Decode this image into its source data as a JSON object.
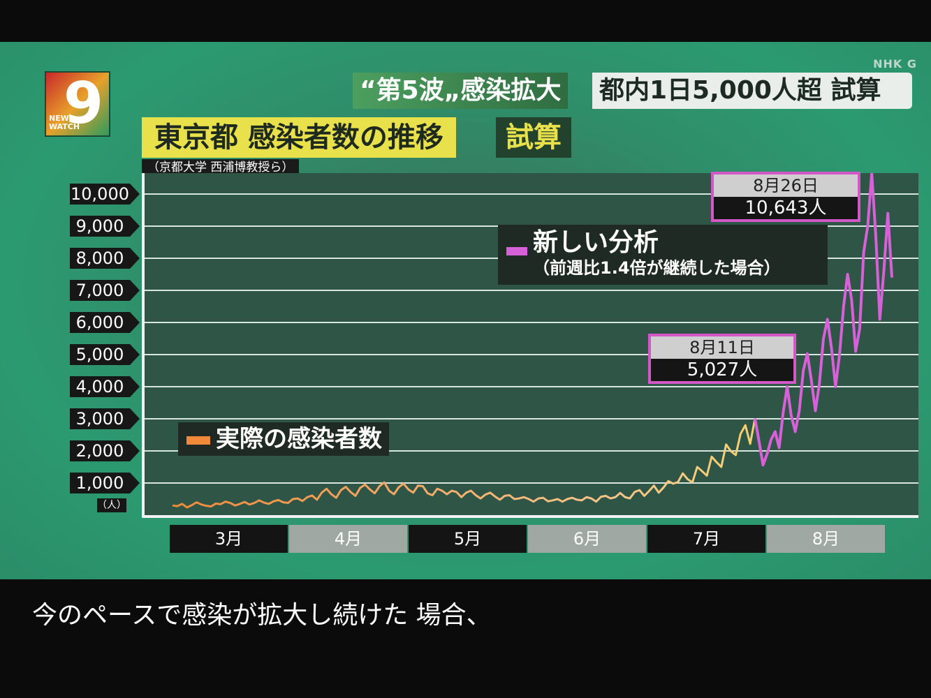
{
  "channel": "NHK G",
  "logo": {
    "number": "9",
    "text_line1": "NEWS",
    "text_line2": "WATCH"
  },
  "headline": {
    "left": "“第5波„感染拡大",
    "right": "都内1日5,000人超 試算"
  },
  "title": "東京都  感染者数の推移",
  "estimate_tag": "試算",
  "source": "（京都大学  西浦博教授ら）",
  "legend": {
    "actual": "実際の感染者数",
    "new_analysis_line1": "新しい分析",
    "new_analysis_line2": "（前週比1.4倍が継続した場合）"
  },
  "callouts": [
    {
      "date": "8月11日",
      "value": "5,027人"
    },
    {
      "date": "8月26日",
      "value": "10,643人"
    }
  ],
  "subtitle": "今のペースで感染が拡大し続けた 場合、",
  "colors": {
    "actual": "#f08a3a",
    "projection": "#d860d8",
    "plot_bg": "#2e5545"
  },
  "chart_data": {
    "type": "line",
    "yticks": [
      "10,000",
      "9,000",
      "8,000",
      "7,000",
      "6,000",
      "5,000",
      "4,000",
      "3,000",
      "2,000",
      "1,000"
    ],
    "yunit": "（人）",
    "months": [
      "3月",
      "4月",
      "5月",
      "6月",
      "7月",
      "8月"
    ],
    "ylim": [
      0,
      10643
    ],
    "grid": true,
    "series": [
      {
        "name": "実際の感染者数",
        "values": [
          300,
          280,
          350,
          240,
          310,
          400,
          330,
          290,
          270,
          360,
          340,
          420,
          380,
          300,
          350,
          410,
          330,
          380,
          460,
          390,
          350,
          430,
          470,
          400,
          380,
          500,
          520,
          440,
          560,
          610,
          480,
          700,
          820,
          650,
          540,
          780,
          880,
          720,
          600,
          850,
          950,
          800,
          680,
          900,
          1020,
          760,
          650,
          870,
          980,
          800,
          700,
          920,
          900,
          680,
          620,
          820,
          760,
          650,
          760,
          720,
          560,
          700,
          760,
          620,
          520,
          640,
          700,
          580,
          480,
          600,
          620,
          500,
          520,
          560,
          500,
          420,
          520,
          540,
          430,
          460,
          500,
          420,
          500,
          540,
          480,
          460,
          560,
          520,
          420,
          570,
          600,
          520,
          560,
          690,
          560,
          520,
          720,
          780,
          600,
          750,
          920,
          700,
          860,
          1060,
          980,
          1030,
          1300,
          1120,
          1020,
          1500,
          1370,
          1230,
          1820,
          1650,
          1500,
          2200,
          1990,
          1870,
          2530,
          2800,
          2220,
          3010
        ]
      },
      {
        "name": "新しい分析",
        "values": [
          3010,
          2300,
          1560,
          1900,
          2350,
          2600,
          2100,
          3200,
          4000,
          3100,
          2600,
          3250,
          4500,
          5027,
          4200,
          3250,
          4100,
          5500,
          6100,
          5200,
          4000,
          5000,
          6500,
          7500,
          6700,
          5100,
          5800,
          8200,
          9000,
          10643,
          8700,
          6100,
          7600,
          9400,
          7400
        ]
      }
    ],
    "annotations": [
      {
        "label": "8月11日",
        "value": 5027
      },
      {
        "label": "8月26日",
        "value": 10643
      }
    ]
  }
}
